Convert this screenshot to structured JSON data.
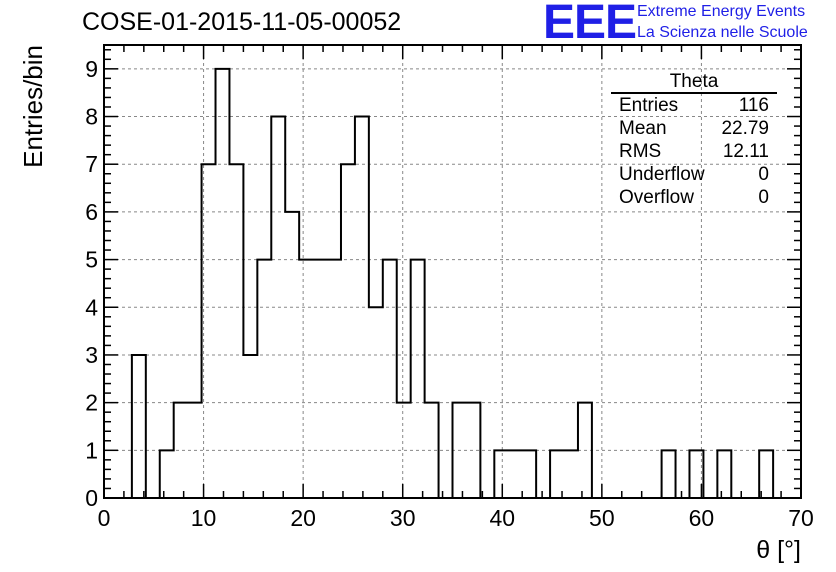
{
  "page": {
    "title": "COSE-01-2015-11-05-00052",
    "logo": {
      "mark": "EEE",
      "line1": "Extreme Energy Events",
      "line2": "La Scienza nelle Scuole",
      "color": "#1f1fe6"
    }
  },
  "stats_box": {
    "title": "Theta",
    "rows": [
      {
        "label": "Entries",
        "value": "116"
      },
      {
        "label": "Mean",
        "value": "22.79"
      },
      {
        "label": "RMS",
        "value": "12.11"
      },
      {
        "label": "Underflow",
        "value": "0"
      },
      {
        "label": "Overflow",
        "value": "0"
      }
    ]
  },
  "chart_data": {
    "type": "bar",
    "histogram": true,
    "title": "COSE-01-2015-11-05-00052",
    "xlabel": "θ [°]",
    "ylabel": "Entries/bin",
    "xlim": [
      0,
      70
    ],
    "ylim": [
      0,
      9.5
    ],
    "x_ticks": [
      0,
      10,
      20,
      30,
      40,
      50,
      60,
      70
    ],
    "y_ticks": [
      0,
      1,
      2,
      3,
      4,
      5,
      6,
      7,
      8,
      9
    ],
    "grid": true,
    "bin_width": 1.4,
    "bin_edges_start": 0,
    "values": [
      0,
      0,
      3,
      0,
      1,
      2,
      2,
      7,
      9,
      7,
      3,
      5,
      8,
      6,
      5,
      5,
      5,
      7,
      8,
      4,
      5,
      2,
      5,
      2,
      0,
      2,
      2,
      0,
      1,
      1,
      1,
      0,
      1,
      1,
      2,
      0,
      0,
      0,
      0,
      0,
      1,
      0,
      1,
      0,
      1,
      0,
      0,
      1,
      0,
      0
    ],
    "line_color": "#000000"
  }
}
